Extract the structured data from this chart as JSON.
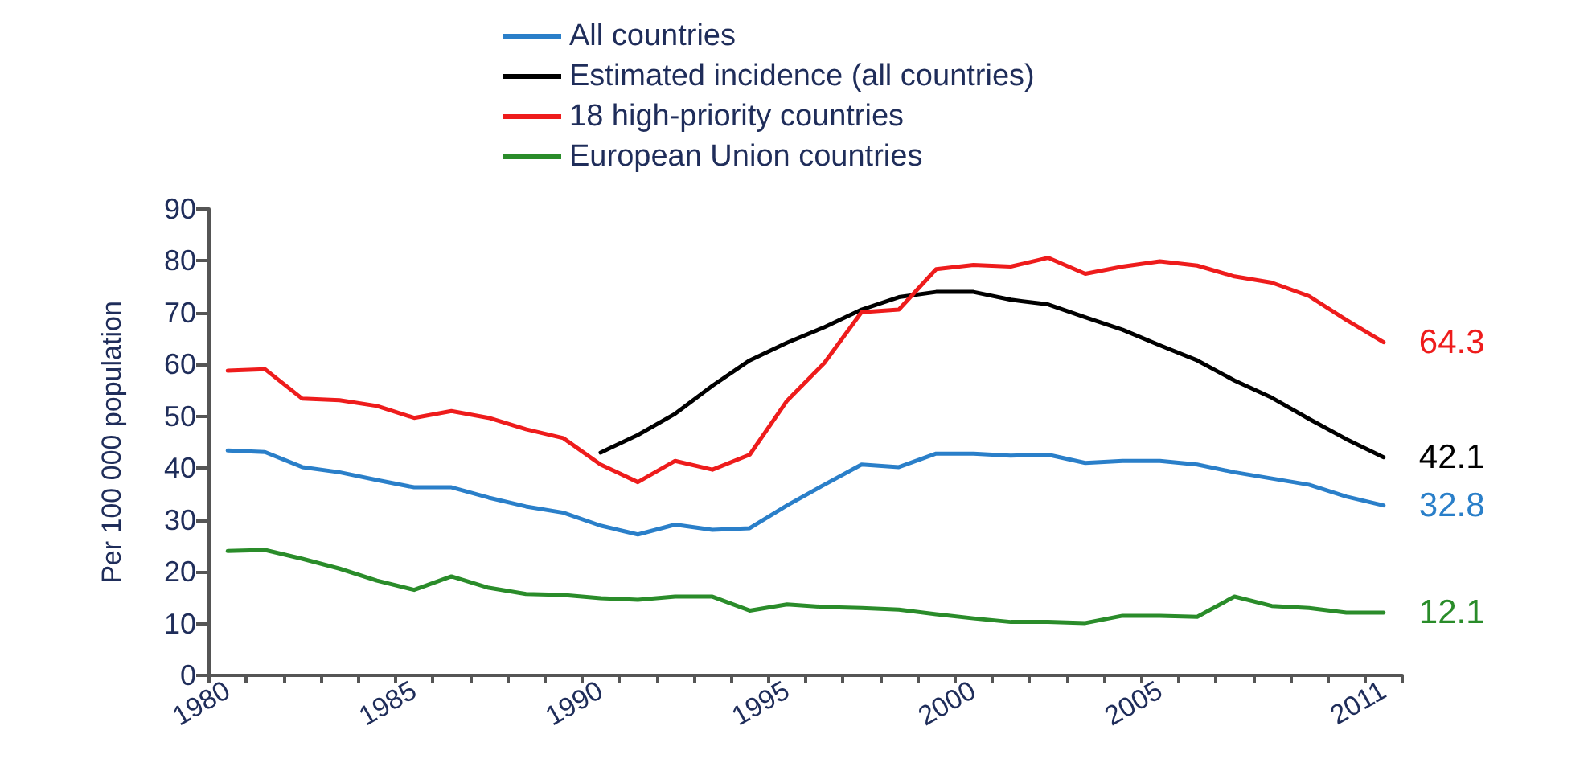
{
  "chart_data": {
    "type": "line",
    "ylabel": "Per 100 000 population",
    "categories": [
      "1980",
      null,
      null,
      null,
      null,
      "1985",
      null,
      null,
      null,
      null,
      "1990",
      null,
      null,
      null,
      null,
      "1995",
      null,
      null,
      null,
      null,
      "2000",
      null,
      null,
      null,
      null,
      "2005",
      null,
      null,
      null,
      null,
      null,
      "2011"
    ],
    "series": [
      {
        "name": "All countries",
        "color": "#2a7fc9",
        "values": [
          43.4,
          43.1,
          40.2,
          39.2,
          37.7,
          36.3,
          36.3,
          34.3,
          32.6,
          31.4,
          28.9,
          27.2,
          29.1,
          28.1,
          28.4,
          32.8,
          36.8,
          40.7,
          40.2,
          42.8,
          42.8,
          42.4,
          42.6,
          41,
          41.4,
          41.4,
          40.7,
          39.2,
          38,
          36.8,
          34.5,
          32.8
        ],
        "value_labels": [
          null,
          null,
          null,
          null,
          null,
          null,
          null,
          null,
          null,
          null,
          null,
          null,
          null,
          null,
          null,
          null,
          null,
          null,
          null,
          null,
          null,
          null,
          null,
          null,
          null,
          null,
          null,
          null,
          null,
          null,
          null,
          "32.8"
        ]
      },
      {
        "name": "Estimated incidence (all countries)",
        "color": "#000000",
        "values": [
          null,
          null,
          null,
          null,
          null,
          null,
          null,
          null,
          null,
          null,
          43,
          46.4,
          50.5,
          55.9,
          60.8,
          64.2,
          67.2,
          70.6,
          73,
          74,
          74,
          72.5,
          71.6,
          69.1,
          66.7,
          63.7,
          60.8,
          56.9,
          53.6,
          49.5,
          45.6,
          42.1
        ],
        "value_labels": [
          null,
          null,
          null,
          null,
          null,
          null,
          null,
          null,
          null,
          null,
          null,
          null,
          null,
          null,
          null,
          null,
          null,
          null,
          null,
          null,
          null,
          null,
          null,
          null,
          null,
          null,
          null,
          null,
          null,
          null,
          null,
          "42.1"
        ]
      },
      {
        "name": "18 high-priority countries",
        "color": "#ee1c1c",
        "values": [
          58.8,
          59.1,
          53.4,
          53.1,
          52,
          49.7,
          51,
          49.7,
          47.5,
          45.8,
          40.7,
          37.3,
          41.4,
          39.7,
          42.6,
          53,
          60.3,
          70.1,
          70.6,
          78.4,
          79.2,
          78.9,
          80.6,
          77.5,
          78.9,
          79.9,
          79.1,
          77,
          75.8,
          73.2,
          68.6,
          64.3
        ],
        "value_labels": [
          null,
          null,
          null,
          null,
          null,
          null,
          null,
          null,
          null,
          null,
          null,
          null,
          null,
          null,
          null,
          null,
          null,
          null,
          null,
          null,
          null,
          null,
          null,
          null,
          null,
          null,
          null,
          null,
          null,
          null,
          null,
          "64.3"
        ]
      },
      {
        "name": "European Union countries",
        "color": "#2a8c2a",
        "values": [
          24,
          24.2,
          22.5,
          20.6,
          18.3,
          16.5,
          19.1,
          16.9,
          15.7,
          15.5,
          14.9,
          14.6,
          15.2,
          15.2,
          12.5,
          13.7,
          13.2,
          13,
          12.7,
          11.8,
          11,
          10.3,
          10.3,
          10.1,
          11.5,
          11.5,
          11.3,
          15.2,
          13.4,
          13,
          12.1,
          12.1
        ],
        "value_labels": [
          null,
          null,
          null,
          null,
          null,
          null,
          null,
          null,
          null,
          null,
          null,
          null,
          null,
          null,
          null,
          null,
          null,
          null,
          null,
          null,
          null,
          null,
          null,
          null,
          null,
          null,
          null,
          null,
          null,
          null,
          null,
          "12.1"
        ]
      }
    ],
    "ylim": [
      0,
      90
    ],
    "yticks": [
      0,
      10,
      20,
      30,
      40,
      50,
      60,
      70,
      80,
      90
    ],
    "grid": false,
    "legend": "top",
    "marker": "none",
    "line_style": "solid"
  }
}
